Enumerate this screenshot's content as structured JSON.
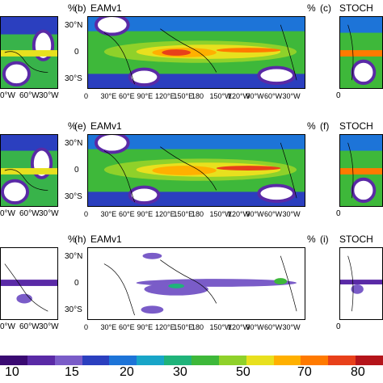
{
  "rows": [
    {
      "left_panel": "%",
      "panel_b": "(b)",
      "model_b": "EAMv1",
      "pct_mid": "%",
      "panel_c": "(c)",
      "model_c": "STOCH"
    },
    {
      "left_panel": "%",
      "panel_b": "(e)",
      "model_b": "EAMv1",
      "pct_mid": "%",
      "panel_c": "(f)",
      "model_c": "STOCH"
    },
    {
      "left_panel": "%",
      "panel_b": "(h)",
      "model_b": "EAMv1",
      "pct_mid": "%",
      "panel_c": "(i)",
      "model_c": "STOCH"
    }
  ],
  "lat_ticks": [
    "30°N",
    "0",
    "30°S"
  ],
  "lon_ticks_main": [
    "0",
    "30°E",
    "60°E",
    "90°E",
    "120°E",
    "150°E",
    "180",
    "150°W",
    "120°W",
    "90°W",
    "60°W",
    "30°W"
  ],
  "lon_ticks_left": [
    "0°W",
    "60°W",
    "30°W"
  ],
  "lon_ticks_right": [
    "0"
  ],
  "colorbar": {
    "labels": [
      "10",
      "15",
      "20",
      "30",
      "50",
      "70",
      "80"
    ],
    "colors": [
      "#3a0a72",
      "#5a2aa6",
      "#7a5cc8",
      "#2b3fbf",
      "#1d74d8",
      "#18a5c8",
      "#1fb37a",
      "#3eb83a",
      "#8fd12a",
      "#e8e01e",
      "#ffb000",
      "#ff7a00",
      "#e8401a",
      "#b4141a"
    ]
  }
}
